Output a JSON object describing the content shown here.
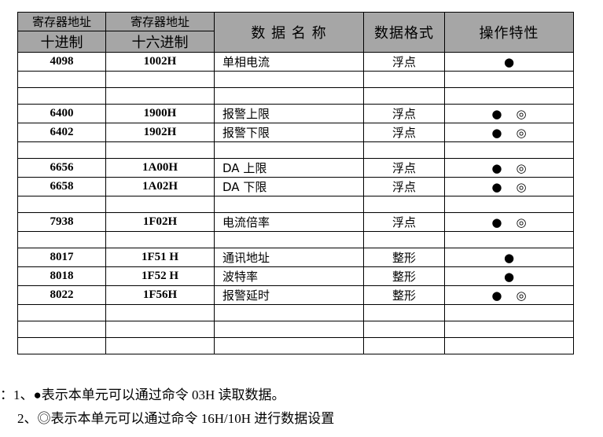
{
  "header": {
    "addr_dec_top": "寄存器地址",
    "addr_dec_bottom": "十进制",
    "addr_hex_top": "寄存器地址",
    "addr_hex_bottom": "十六进制",
    "name": "数 据 名 称",
    "format": "数据格式",
    "operation": "操作特性"
  },
  "rows": [
    {
      "dec": "4098",
      "hex": "1002H",
      "name": "单相电流",
      "format": "浮点",
      "ops": [
        "●"
      ]
    },
    {
      "dec": "",
      "hex": "",
      "name": "",
      "format": "",
      "ops": []
    },
    {
      "dec": "",
      "hex": "",
      "name": "",
      "format": "",
      "ops": []
    },
    {
      "dec": "6400",
      "hex": "1900H",
      "name": "报警上限",
      "format": "浮点",
      "ops": [
        "●",
        "◎"
      ]
    },
    {
      "dec": "6402",
      "hex": "1902H",
      "name": "报警下限",
      "format": "浮点",
      "ops": [
        "●",
        "◎"
      ]
    },
    {
      "dec": "",
      "hex": "",
      "name": "",
      "format": "",
      "ops": []
    },
    {
      "dec": "6656",
      "hex": "1A00H",
      "name": "DA 上限",
      "format": "浮点",
      "ops": [
        "●",
        "◎"
      ]
    },
    {
      "dec": "6658",
      "hex": "1A02H",
      "name": "DA 下限",
      "format": "浮点",
      "ops": [
        "●",
        "◎"
      ]
    },
    {
      "dec": "",
      "hex": "",
      "name": "",
      "format": "",
      "ops": []
    },
    {
      "dec": "7938",
      "hex": "1F02H",
      "name": "电流倍率",
      "format": "浮点",
      "ops": [
        "●",
        "◎"
      ]
    },
    {
      "dec": "",
      "hex": "",
      "name": "",
      "format": "",
      "ops": []
    },
    {
      "dec": "8017",
      "hex": "1F51 H",
      "name": "通讯地址",
      "format": "整形",
      "ops": [
        "●"
      ]
    },
    {
      "dec": "8018",
      "hex": "1F52 H",
      "name": "波特率",
      "format": "整形",
      "ops": [
        "●"
      ]
    },
    {
      "dec": "8022",
      "hex": "1F56H",
      "name": "报警延时",
      "format": "整形",
      "ops": [
        "●",
        "◎"
      ]
    },
    {
      "dec": "",
      "hex": "",
      "name": "",
      "format": "",
      "ops": []
    },
    {
      "dec": "",
      "hex": "",
      "name": "",
      "format": "",
      "ops": []
    },
    {
      "dec": "",
      "hex": "",
      "name": "",
      "format": "",
      "ops": []
    }
  ],
  "notes": [
    "：1、●表示本单元可以通过命令 03H 读取数据。",
    "2、◎表示本单元可以通过命令 16H/10H 进行数据设置"
  ]
}
